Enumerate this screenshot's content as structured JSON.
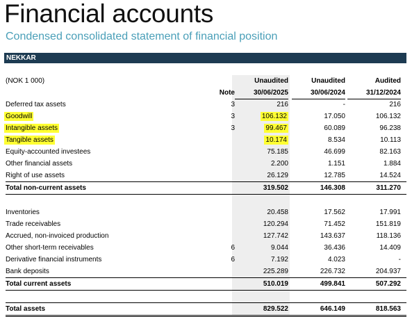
{
  "title": "Financial accounts",
  "subtitle": "Condensed consolidated statement of financial position",
  "company": "NEKKAR",
  "header": {
    "currency": "(NOK 1 000)",
    "note": "Note",
    "col1_status": "Unaudited",
    "col1_date": "30/06/2025",
    "col2_status": "Unaudited",
    "col2_date": "30/06/2024",
    "col3_status": "Audited",
    "col3_date": "31/12/2024"
  },
  "highlight_color": "#ffff33",
  "rows": [
    {
      "label": "Deferred tax assets",
      "note": "3",
      "v1": "216",
      "v2": "-",
      "v3": "216"
    },
    {
      "label": "Goodwill",
      "note": "3",
      "v1": "106.132",
      "v2": "17.050",
      "v3": "106.132"
    },
    {
      "label": "Intangible assets",
      "note": "3",
      "v1": "99.467",
      "v2": "60.089",
      "v3": "96.238"
    },
    {
      "label": "Tangible assets",
      "note": "",
      "v1": "10.174",
      "v2": "8.534",
      "v3": "10.113"
    },
    {
      "label": "Equity-accounted investees",
      "note": "",
      "v1": "75.185",
      "v2": "46.699",
      "v3": "82.163"
    },
    {
      "label": "Other financial assets",
      "note": "",
      "v1": "2.200",
      "v2": "1.151",
      "v3": "1.884"
    },
    {
      "label": "Right of use assets",
      "note": "",
      "v1": "26.129",
      "v2": "12.785",
      "v3": "14.524"
    },
    {
      "label": "Total non-current assets",
      "note": "",
      "v1": "319.502",
      "v2": "146.308",
      "v3": "311.270"
    },
    {
      "label": "Inventories",
      "note": "",
      "v1": "20.458",
      "v2": "17.562",
      "v3": "17.991"
    },
    {
      "label": "Trade receivables",
      "note": "",
      "v1": "120.294",
      "v2": "71.452",
      "v3": "151.819"
    },
    {
      "label": "Accrued, non-invoiced production",
      "note": "",
      "v1": "127.742",
      "v2": "143.637",
      "v3": "118.136"
    },
    {
      "label": "Other short-term receivables",
      "note": "6",
      "v1": "9.044",
      "v2": "36.436",
      "v3": "14.409"
    },
    {
      "label": "Derivative financial instruments",
      "note": "6",
      "v1": "7.192",
      "v2": "4.023",
      "v3": "-"
    },
    {
      "label": "Bank deposits",
      "note": "",
      "v1": "225.289",
      "v2": "226.732",
      "v3": "204.937"
    },
    {
      "label": "Total current assets",
      "note": "",
      "v1": "510.019",
      "v2": "499.841",
      "v3": "507.292"
    },
    {
      "label": "Total assets",
      "note": "",
      "v1": "829.522",
      "v2": "646.149",
      "v3": "818.563"
    }
  ]
}
